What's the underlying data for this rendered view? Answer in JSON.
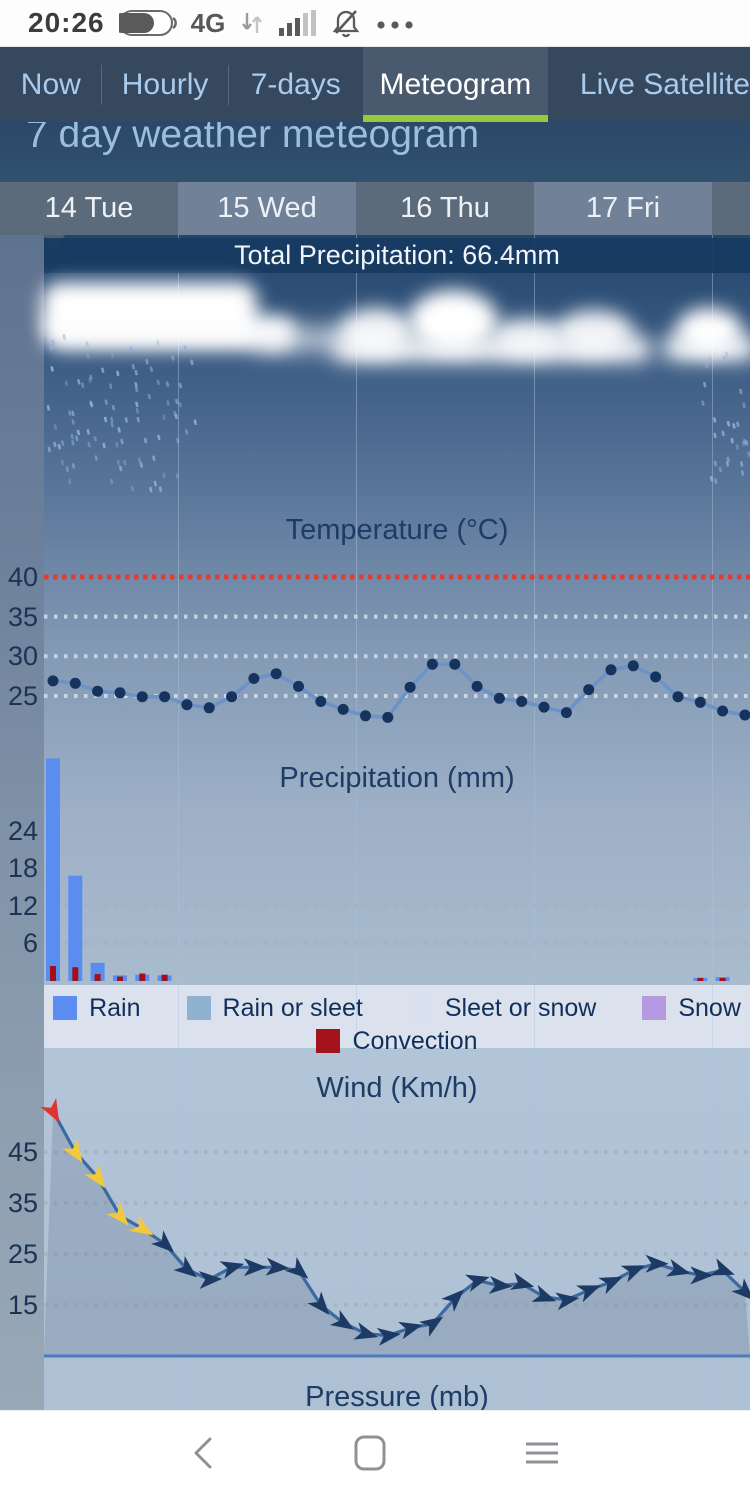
{
  "status_bar": {
    "time": "20:26",
    "network": "4G"
  },
  "tabs": [
    {
      "label": "Now",
      "active": false
    },
    {
      "label": "Hourly",
      "active": false
    },
    {
      "label": "7-days",
      "active": false
    },
    {
      "label": "Meteogram",
      "active": true
    },
    {
      "label": "Live Satellite",
      "active": false
    }
  ],
  "page_title": "7 day weather meteogram",
  "day_headers": [
    "14 Tue",
    "15 Wed",
    "16 Thu",
    "17 Fri"
  ],
  "chart_data": [
    {
      "type": "line",
      "title": "Temperature (°C)",
      "ylabel": "°C",
      "yticks": [
        40,
        35,
        30,
        25
      ],
      "threshold_line": {
        "value": 40,
        "color": "#e23c35"
      },
      "grid": "dotted",
      "values": [
        26.9,
        26.6,
        25.6,
        25.4,
        24.9,
        24.9,
        23.9,
        23.5,
        24.9,
        27.2,
        27.8,
        26.2,
        24.3,
        23.3,
        22.5,
        22.3,
        26.1,
        29.0,
        29.0,
        26.2,
        24.7,
        24.3,
        23.6,
        22.9,
        25.8,
        28.3,
        28.8,
        27.4,
        24.9,
        24.2,
        23.1,
        22.6
      ],
      "line_color": "#6c92c8",
      "point_color": "#16335e"
    },
    {
      "type": "bar",
      "title": "Precipitation (mm)",
      "ylabel": "mm",
      "yticks": [
        24,
        18,
        12,
        6
      ],
      "total_label": "Total Precipitation: 66.4mm",
      "grid": "dotted",
      "bars": [
        {
          "slot": 0,
          "rain": 35.5,
          "convection": 2.4
        },
        {
          "slot": 1,
          "rain": 16.8,
          "convection": 2.2
        },
        {
          "slot": 2,
          "rain": 2.9,
          "convection": 1.1
        },
        {
          "slot": 3,
          "rain": 0.9,
          "convection": 0.7
        },
        {
          "slot": 4,
          "rain": 1.0,
          "convection": 1.2
        },
        {
          "slot": 5,
          "rain": 0.9,
          "convection": 1.0
        },
        {
          "slot": 29,
          "rain": 0.5,
          "convection": 0.5
        },
        {
          "slot": 30,
          "rain": 0.6,
          "convection": 0.5
        }
      ],
      "rain_color": "#5b8cf0",
      "convection_color": "#a01218"
    },
    {
      "type": "line",
      "title": "Wind (Km/h)",
      "ylabel": "Km/h",
      "yticks": [
        45,
        35,
        25,
        15
      ],
      "grid": "dotted",
      "values": [
        53,
        45,
        40,
        32.5,
        30,
        27,
        22,
        20,
        22.4,
        22.4,
        22.4,
        21.8,
        15,
        11.5,
        9.4,
        9,
        10.5,
        11.3,
        16.3,
        19.8,
        18.8,
        19.2,
        16.6,
        16,
        17.9,
        19.5,
        21.8,
        23.1,
        21.8,
        20.8,
        21.8,
        17.6
      ],
      "line_color": "#3c6aa0",
      "marker_palette": {
        "red": "#e13430",
        "yellow": "#f2c93a",
        "navy": "#1c3a64"
      },
      "red_markers": [
        0
      ],
      "yellow_markers": [
        1,
        2,
        3,
        4
      ]
    },
    {
      "type": "line",
      "title": "Pressure (mb)",
      "ylabel": "mb",
      "values": []
    }
  ],
  "legend": {
    "items": [
      {
        "label": "Rain",
        "color": "#5b8cf0"
      },
      {
        "label": "Rain or sleet",
        "color": "#8fb0cf"
      },
      {
        "label": "Sleet or snow",
        "color": "#d9e1f0"
      },
      {
        "label": "Snow",
        "color": "#b49ae0"
      },
      {
        "label": "Convection",
        "color": "#a3131c"
      }
    ]
  },
  "colors": {
    "tab_underline": "#97c93d",
    "header_dark": "#5c6b7c",
    "header_light": "#718298"
  }
}
